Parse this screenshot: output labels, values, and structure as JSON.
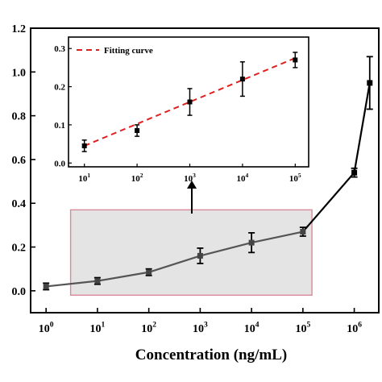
{
  "chart_data": [
    {
      "type": "line",
      "xlabel": "Concentration (ng/mL)",
      "ylabel": "",
      "x_scale": "log",
      "xlim": [
        0.5,
        3000000
      ],
      "ylim": [
        -0.1,
        1.2
      ],
      "x_tick_labels": [
        "10^0",
        "10^1",
        "10^2",
        "10^3",
        "10^4",
        "10^5",
        "10^6"
      ],
      "y_tick_labels": [
        "0.0",
        "0.2",
        "0.4",
        "0.6",
        "0.8",
        "1.0",
        "1.2"
      ],
      "x_ticks": [
        1,
        10,
        100,
        1000,
        10000,
        100000,
        1000000
      ],
      "y_ticks": [
        0.0,
        0.2,
        0.4,
        0.6,
        0.8,
        1.0,
        1.2
      ],
      "grid": false,
      "series": [
        {
          "color": "#000000",
          "x": [
            1,
            10,
            100,
            1000,
            10000,
            100000,
            1000000,
            2000000
          ],
          "y": [
            0.02,
            0.045,
            0.085,
            0.16,
            0.22,
            0.27,
            0.54,
            0.95
          ],
          "err": [
            0.015,
            0.015,
            0.015,
            0.035,
            0.045,
            0.02,
            0.02,
            0.12
          ]
        }
      ],
      "highlight_region": {
        "x": [
          3,
          150000
        ],
        "y": [
          -0.02,
          0.37
        ],
        "fill": "#e4e4e4",
        "stroke": "#d98a9a"
      }
    },
    {
      "type": "scatter",
      "x_scale": "log",
      "xlim": [
        5,
        180000
      ],
      "ylim": [
        -0.01,
        0.33
      ],
      "x_tick_labels": [
        "10^1",
        "10^2",
        "10^3",
        "10^4",
        "10^5"
      ],
      "y_tick_labels": [
        "0.0",
        "0.1",
        "0.2",
        "0.3"
      ],
      "x_ticks": [
        10,
        100,
        1000,
        10000,
        100000
      ],
      "y_ticks": [
        0.0,
        0.1,
        0.2,
        0.3
      ],
      "legend": "top-left",
      "series": [
        {
          "name": "Fitting curve",
          "color": "#e02020",
          "style": "dashed",
          "x": [
            10,
            100000
          ],
          "y": [
            0.045,
            0.275
          ]
        },
        {
          "color": "#000000",
          "x": [
            10,
            100,
            1000,
            10000,
            100000
          ],
          "y": [
            0.045,
            0.085,
            0.16,
            0.22,
            0.27
          ],
          "err": [
            0.015,
            0.015,
            0.035,
            0.045,
            0.02
          ]
        }
      ]
    }
  ]
}
